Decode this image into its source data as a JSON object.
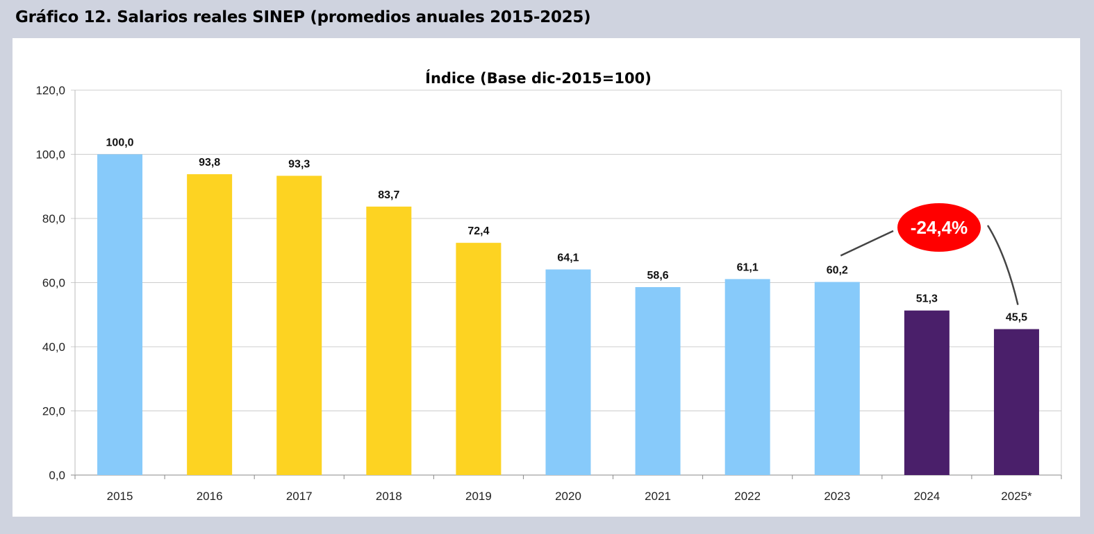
{
  "figure_title": "Gráfico 12.  Salarios reales SINEP (promedios anuales 2015-2025)",
  "chart_data": {
    "type": "bar",
    "title": "Índice (Base dic-2015=100)",
    "xlabel": "",
    "ylabel": "",
    "categories": [
      "2015",
      "2016",
      "2017",
      "2018",
      "2019",
      "2020",
      "2021",
      "2022",
      "2023",
      "2024",
      "2025*"
    ],
    "values": [
      100.0,
      93.8,
      93.3,
      83.7,
      72.4,
      64.1,
      58.6,
      61.1,
      60.2,
      51.3,
      45.5
    ],
    "data_labels": [
      "100,0",
      "93,8",
      "93,3",
      "83,7",
      "72,4",
      "64,1",
      "58,6",
      "61,1",
      "60,2",
      "51,3",
      "45,5"
    ],
    "bar_colors": [
      "#87cafa",
      "#fdd322",
      "#fdd322",
      "#fdd322",
      "#fdd322",
      "#87cafa",
      "#87cafa",
      "#87cafa",
      "#87cafa",
      "#4a1f6a",
      "#4a1f6a"
    ],
    "ylim": [
      0,
      120
    ],
    "yticks": [
      0,
      20,
      40,
      60,
      80,
      100,
      120
    ],
    "ytick_labels": [
      "0,0",
      "20,0",
      "40,0",
      "60,0",
      "80,0",
      "100,0",
      "120,0"
    ],
    "grid": true,
    "annotation": {
      "text": "-24,4%",
      "from": "2023",
      "to": "2025*",
      "color": "#ff0000"
    }
  }
}
